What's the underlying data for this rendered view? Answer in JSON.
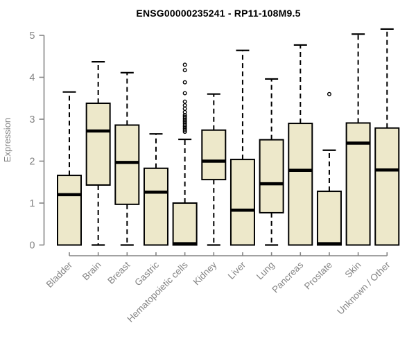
{
  "title": "ENSG00000235241 - RP11-108M9.5",
  "chart_data": {
    "type": "boxplot",
    "title": "ENSG00000235241 - RP11-108M9.5",
    "xlabel": "",
    "ylabel": "Expression",
    "ylim": [
      0,
      5.2
    ],
    "yticks": [
      0,
      1,
      2,
      3,
      4,
      5
    ],
    "grid": false,
    "legend": false,
    "categories": [
      "Bladder",
      "Brain",
      "Breast",
      "Gastric",
      "Hematopoietic cells",
      "Kidney",
      "Liver",
      "Lung",
      "Pancreas",
      "Prostate",
      "Skin",
      "Unknown / Other"
    ],
    "series": [
      {
        "category": "Bladder",
        "min": 0,
        "q1": 0,
        "median": 1.2,
        "q3": 1.66,
        "max": 3.65,
        "outliers": []
      },
      {
        "category": "Brain",
        "min": 0,
        "q1": 1.43,
        "median": 2.72,
        "q3": 3.38,
        "max": 4.37,
        "outliers": []
      },
      {
        "category": "Breast",
        "min": 0,
        "q1": 0.97,
        "median": 1.97,
        "q3": 2.86,
        "max": 4.11,
        "outliers": []
      },
      {
        "category": "Gastric",
        "min": 0,
        "q1": 0,
        "median": 1.26,
        "q3": 1.83,
        "max": 2.65,
        "outliers": []
      },
      {
        "category": "Hematopoietic cells",
        "min": 0,
        "q1": 0,
        "median": 0.03,
        "q3": 1.0,
        "max": 2.52,
        "outliers": [
          2.7,
          2.74,
          2.78,
          2.82,
          2.86,
          2.9,
          2.94,
          2.98,
          3.02,
          3.06,
          3.1,
          3.17,
          3.25,
          3.33,
          3.42,
          3.62,
          3.88,
          4.17,
          4.3
        ]
      },
      {
        "category": "Kidney",
        "min": 0,
        "q1": 1.56,
        "median": 2.0,
        "q3": 2.74,
        "max": 3.6,
        "outliers": []
      },
      {
        "category": "Liver",
        "min": 0,
        "q1": 0,
        "median": 0.83,
        "q3": 2.04,
        "max": 4.64,
        "outliers": []
      },
      {
        "category": "Lung",
        "min": 0,
        "q1": 0.77,
        "median": 1.46,
        "q3": 2.51,
        "max": 3.96,
        "outliers": []
      },
      {
        "category": "Pancreas",
        "min": 0,
        "q1": 0,
        "median": 1.78,
        "q3": 2.9,
        "max": 4.77,
        "outliers": []
      },
      {
        "category": "Prostate",
        "min": 0,
        "q1": 0,
        "median": 0.03,
        "q3": 1.28,
        "max": 2.26,
        "outliers": [
          3.6
        ]
      },
      {
        "category": "Skin",
        "min": 0,
        "q1": 0,
        "median": 2.43,
        "q3": 2.91,
        "max": 5.03,
        "outliers": []
      },
      {
        "category": "Unknown / Other",
        "min": 0,
        "q1": 0,
        "median": 1.79,
        "q3": 2.79,
        "max": 5.15,
        "outliers": []
      }
    ],
    "colors": {
      "box_fill": "#ede8ca",
      "box_border": "#000000",
      "median": "#000000",
      "whisker": "#000000",
      "outlier": "#000000",
      "axis": "#848484",
      "tick_label": "#848484",
      "title": "#000000"
    }
  }
}
